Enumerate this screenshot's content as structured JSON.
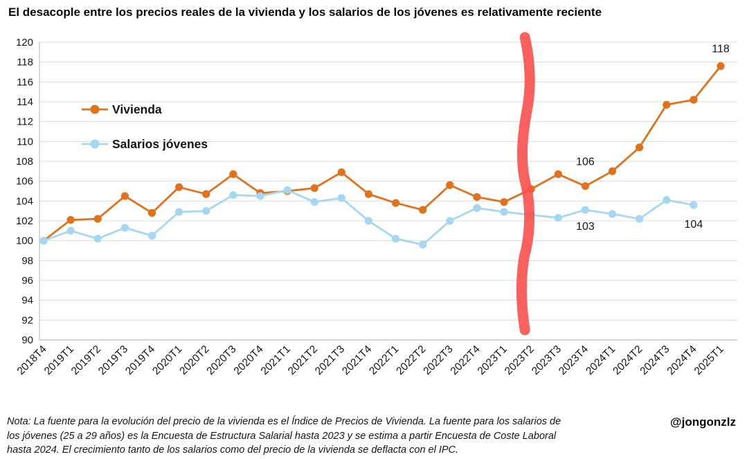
{
  "title": "El desacople entre los precios reales de la vivienda y los salarios de los jóvenes es relativamente reciente",
  "credit": "@jongonzlz",
  "note": "Nota: La fuente para la evolución del precio de la vivienda es el Índice de Precios de Vivienda. La fuente para los salarios de los jóvenes (25 a 29 años) es la Encuesta de Estructura Salarial hasta 2023 y se estima a partir Encuesta de Coste Laboral hasta 2024. El crecimiento tanto de los salarios como del precio de la vivienda se deflacta con el IPC.",
  "chart_data": {
    "type": "line",
    "categories": [
      "2018T4",
      "2019T1",
      "2019T2",
      "2019T3",
      "2019T4",
      "2020T1",
      "2020T2",
      "2020T3",
      "2020T4",
      "2021T1",
      "2021T2",
      "2021T3",
      "2021T4",
      "2022T1",
      "2022T2",
      "2022T3",
      "2022T4",
      "2023T1",
      "2023T2",
      "2023T3",
      "2023T4",
      "2024T1",
      "2024T2",
      "2024T3",
      "2024T4",
      "2025T1"
    ],
    "series": [
      {
        "name": "Vivienda",
        "color": "#e2711b",
        "values": [
          100,
          102.1,
          102.2,
          104.5,
          102.8,
          105.4,
          104.7,
          106.7,
          104.8,
          105.0,
          105.3,
          106.9,
          104.7,
          103.8,
          103.1,
          105.6,
          104.4,
          103.9,
          105.2,
          106.7,
          105.5,
          107.0,
          109.4,
          113.7,
          114.2,
          117.6
        ]
      },
      {
        "name": "Salarios jóvenes",
        "color": "#a6d7f0",
        "values": [
          100,
          101.0,
          100.2,
          101.3,
          100.5,
          102.9,
          103.0,
          104.6,
          104.5,
          105.1,
          103.9,
          104.3,
          102.0,
          100.2,
          99.6,
          102.0,
          103.3,
          102.9,
          102.6,
          102.3,
          103.1,
          102.7,
          102.2,
          104.1,
          103.6,
          null
        ]
      }
    ],
    "xlabel": "",
    "ylabel": "",
    "ylim": [
      90,
      120
    ],
    "ytick_step": 2,
    "grid": true,
    "legend_position": "inside-top-left",
    "annotations": [
      {
        "text": "118",
        "x_index": 25,
        "y_value": 119.0
      },
      {
        "text": "106",
        "x_index": 20,
        "y_value": 107.6
      },
      {
        "text": "103",
        "x_index": 20,
        "y_value": 101.1
      },
      {
        "text": "104",
        "x_index": 24,
        "y_value": 101.3
      }
    ],
    "highlight_stroke": {
      "category": "2023T2",
      "x_index": 18,
      "dx": -8,
      "color": "#f8504e",
      "from_value": 120.5,
      "to_value": 91
    }
  }
}
